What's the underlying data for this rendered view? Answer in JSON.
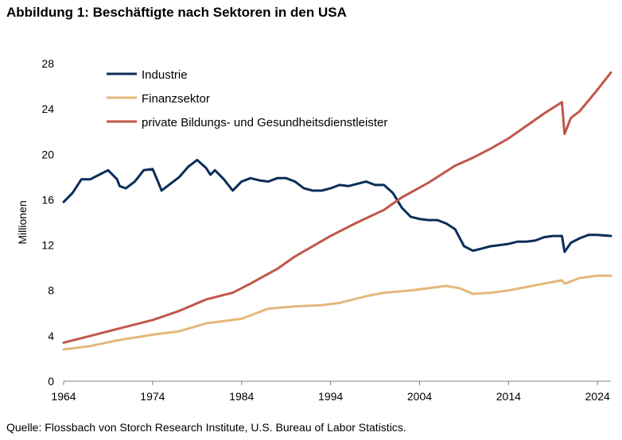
{
  "title": "Abbildung 1: Beschäftigte nach Sektoren in den USA",
  "source": "Quelle: Flossbach von Storch Research Institute, U.S. Bureau of Labor Statistics.",
  "chart_data": {
    "type": "line",
    "ylabel": "Millionen",
    "xlim": [
      1964,
      2025.5
    ],
    "ylim": [
      0,
      28
    ],
    "x_ticks": [
      1964,
      1974,
      1984,
      1994,
      2004,
      2014,
      2024
    ],
    "y_ticks": [
      0,
      4,
      8,
      12,
      16,
      20,
      24,
      28
    ],
    "grid": false,
    "legend_position": "top-left",
    "series": [
      {
        "name": "Industrie",
        "color": "#0b2d5a",
        "points": [
          [
            1964.0,
            15.8
          ],
          [
            1965.0,
            16.6
          ],
          [
            1966.0,
            17.8
          ],
          [
            1967.0,
            17.8
          ],
          [
            1968.0,
            18.2
          ],
          [
            1969.0,
            18.6
          ],
          [
            1970.0,
            17.8
          ],
          [
            1970.3,
            17.2
          ],
          [
            1971.0,
            17.0
          ],
          [
            1972.0,
            17.6
          ],
          [
            1973.0,
            18.6
          ],
          [
            1974.0,
            18.7
          ],
          [
            1974.6,
            17.6
          ],
          [
            1975.0,
            16.8
          ],
          [
            1976.0,
            17.4
          ],
          [
            1977.0,
            18.0
          ],
          [
            1978.0,
            18.9
          ],
          [
            1979.0,
            19.5
          ],
          [
            1980.0,
            18.8
          ],
          [
            1980.5,
            18.2
          ],
          [
            1981.0,
            18.6
          ],
          [
            1982.0,
            17.8
          ],
          [
            1983.0,
            16.8
          ],
          [
            1984.0,
            17.6
          ],
          [
            1985.0,
            17.9
          ],
          [
            1986.0,
            17.7
          ],
          [
            1987.0,
            17.6
          ],
          [
            1988.0,
            17.9
          ],
          [
            1989.0,
            17.9
          ],
          [
            1990.0,
            17.6
          ],
          [
            1991.0,
            17.0
          ],
          [
            1992.0,
            16.8
          ],
          [
            1993.0,
            16.8
          ],
          [
            1994.0,
            17.0
          ],
          [
            1995.0,
            17.3
          ],
          [
            1996.0,
            17.2
          ],
          [
            1997.0,
            17.4
          ],
          [
            1998.0,
            17.6
          ],
          [
            1999.0,
            17.3
          ],
          [
            2000.0,
            17.3
          ],
          [
            2001.0,
            16.6
          ],
          [
            2002.0,
            15.3
          ],
          [
            2003.0,
            14.5
          ],
          [
            2004.0,
            14.3
          ],
          [
            2005.0,
            14.2
          ],
          [
            2006.0,
            14.2
          ],
          [
            2007.0,
            13.9
          ],
          [
            2008.0,
            13.4
          ],
          [
            2009.0,
            11.9
          ],
          [
            2010.0,
            11.5
          ],
          [
            2011.0,
            11.7
          ],
          [
            2012.0,
            11.9
          ],
          [
            2013.0,
            12.0
          ],
          [
            2014.0,
            12.1
          ],
          [
            2015.0,
            12.3
          ],
          [
            2016.0,
            12.3
          ],
          [
            2017.0,
            12.4
          ],
          [
            2018.0,
            12.7
          ],
          [
            2019.0,
            12.8
          ],
          [
            2020.0,
            12.8
          ],
          [
            2020.3,
            11.4
          ],
          [
            2021.0,
            12.2
          ],
          [
            2022.0,
            12.6
          ],
          [
            2023.0,
            12.9
          ],
          [
            2024.0,
            12.9
          ],
          [
            2025.5,
            12.8
          ]
        ]
      },
      {
        "name": "Finanzsektor",
        "color": "#e5b77a",
        "points": [
          [
            1964.0,
            2.8
          ],
          [
            1967.0,
            3.1
          ],
          [
            1970.0,
            3.6
          ],
          [
            1974.0,
            4.1
          ],
          [
            1977.0,
            4.4
          ],
          [
            1980.0,
            5.1
          ],
          [
            1984.0,
            5.5
          ],
          [
            1987.0,
            6.4
          ],
          [
            1990.0,
            6.6
          ],
          [
            1993.0,
            6.7
          ],
          [
            1995.0,
            6.9
          ],
          [
            1998.0,
            7.5
          ],
          [
            2000.0,
            7.8
          ],
          [
            2003.0,
            8.0
          ],
          [
            2005.0,
            8.2
          ],
          [
            2007.0,
            8.4
          ],
          [
            2008.5,
            8.2
          ],
          [
            2010.0,
            7.7
          ],
          [
            2012.0,
            7.8
          ],
          [
            2014.0,
            8.0
          ],
          [
            2016.0,
            8.3
          ],
          [
            2018.0,
            8.6
          ],
          [
            2020.0,
            8.9
          ],
          [
            2020.3,
            8.6
          ],
          [
            2021.0,
            8.8
          ],
          [
            2022.0,
            9.1
          ],
          [
            2024.0,
            9.3
          ],
          [
            2025.5,
            9.3
          ]
        ]
      },
      {
        "name": "private Bildungs- und Gesundheitsdienstleister",
        "color": "#c0564b",
        "points": [
          [
            1964.0,
            3.4
          ],
          [
            1967.0,
            4.0
          ],
          [
            1970.0,
            4.6
          ],
          [
            1974.0,
            5.4
          ],
          [
            1977.0,
            6.2
          ],
          [
            1980.0,
            7.2
          ],
          [
            1983.0,
            7.8
          ],
          [
            1985.0,
            8.6
          ],
          [
            1988.0,
            9.9
          ],
          [
            1990.0,
            11.0
          ],
          [
            1994.0,
            12.8
          ],
          [
            1997.0,
            14.0
          ],
          [
            2000.0,
            15.1
          ],
          [
            2002.0,
            16.2
          ],
          [
            2005.0,
            17.5
          ],
          [
            2008.0,
            19.0
          ],
          [
            2010.0,
            19.7
          ],
          [
            2012.0,
            20.5
          ],
          [
            2014.0,
            21.4
          ],
          [
            2016.0,
            22.5
          ],
          [
            2018.0,
            23.6
          ],
          [
            2020.0,
            24.6
          ],
          [
            2020.3,
            21.8
          ],
          [
            2021.0,
            23.2
          ],
          [
            2022.0,
            23.8
          ],
          [
            2024.0,
            25.7
          ],
          [
            2025.5,
            27.2
          ]
        ]
      }
    ]
  }
}
